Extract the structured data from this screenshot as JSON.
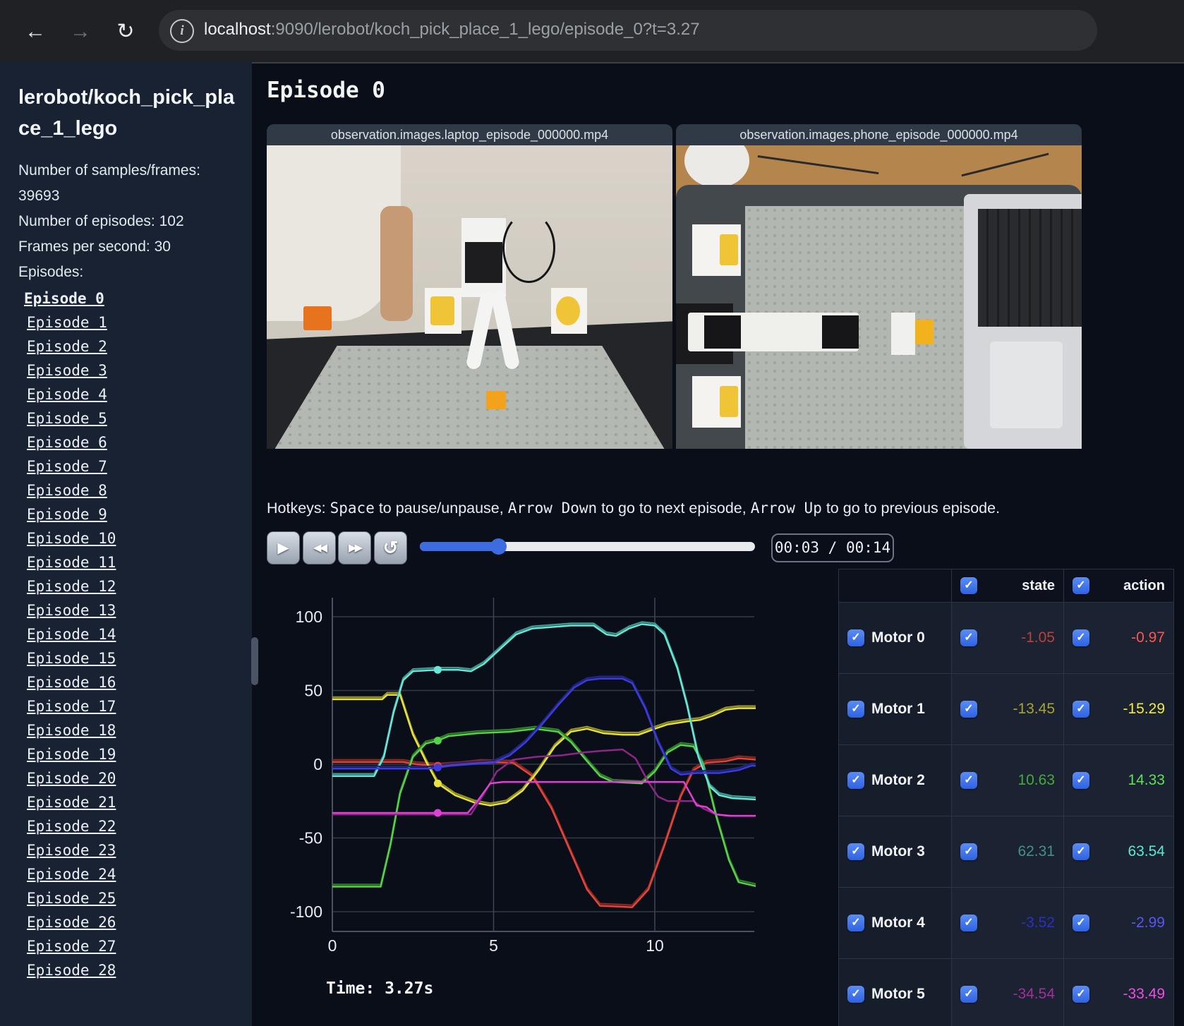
{
  "browser": {
    "url_host": "localhost",
    "url_rest": ":9090/lerobot/koch_pick_place_1_lego/episode_0?t=3.27",
    "icons": {
      "back": "←",
      "forward": "→",
      "reload": "↻",
      "info": "i"
    }
  },
  "sidebar": {
    "title": "lerobot/koch_pick_place_1_lego",
    "info_line_1": "Number of samples/frames: 39693",
    "info_line_2": "Number of episodes: 102",
    "info_line_3": "Frames per second: 30",
    "episodes_label": "Episodes:",
    "active_episode": "Episode 0",
    "episodes": [
      "Episode 0",
      "Episode 1",
      "Episode 2",
      "Episode 3",
      "Episode 4",
      "Episode 5",
      "Episode 6",
      "Episode 7",
      "Episode 8",
      "Episode 9",
      "Episode 10",
      "Episode 11",
      "Episode 12",
      "Episode 13",
      "Episode 14",
      "Episode 15",
      "Episode 16",
      "Episode 17",
      "Episode 18",
      "Episode 19",
      "Episode 20",
      "Episode 21",
      "Episode 22",
      "Episode 23",
      "Episode 24",
      "Episode 25",
      "Episode 26",
      "Episode 27",
      "Episode 28"
    ]
  },
  "main": {
    "heading": "Episode 0",
    "videos": [
      {
        "title": "observation.images.laptop_episode_000000.mp4"
      },
      {
        "title": "observation.images.phone_episode_000000.mp4"
      }
    ],
    "hotkeys": {
      "prefix": "Hotkeys: ",
      "key1": "Space",
      "mid1": " to pause/unpause, ",
      "key2": "Arrow Down",
      "mid2": " to go to next episode, ",
      "key3": "Arrow Up",
      "suffix": " to go to previous episode."
    },
    "player": {
      "icons": {
        "play": "▶",
        "rewind": "◀◀",
        "fast_forward": "▶▶",
        "loop": "↺"
      },
      "progress_pct": 23.4,
      "time_display": "00:03 / 00:14"
    }
  },
  "chart_data": {
    "type": "line",
    "title": "",
    "xlabel": "",
    "ylabel": "",
    "x_ticks": [
      0,
      5,
      10
    ],
    "y_ticks": [
      100,
      50,
      0,
      -50,
      -100
    ],
    "x_range": [
      0,
      13.2
    ],
    "y_range": [
      -113,
      113
    ],
    "marker_time": 3.27,
    "time_label": "Time: 3.27s",
    "grid": true,
    "series": [
      {
        "name": "Motor 0",
        "action_color": "#e2453b",
        "state_color": "#84271f",
        "points": [
          [
            0,
            1.5
          ],
          [
            2.2,
            1.5
          ],
          [
            2.6,
            0
          ],
          [
            3.27,
            -1
          ],
          [
            4.0,
            0
          ],
          [
            4.6,
            1.5
          ],
          [
            5.6,
            1
          ],
          [
            6.2,
            -8
          ],
          [
            6.8,
            -30
          ],
          [
            7.3,
            -55
          ],
          [
            7.9,
            -85
          ],
          [
            8.3,
            -96
          ],
          [
            9.3,
            -97
          ],
          [
            9.8,
            -85
          ],
          [
            10.3,
            -55
          ],
          [
            10.8,
            -22
          ],
          [
            11.2,
            -4
          ],
          [
            11.6,
            1
          ],
          [
            12.2,
            2
          ],
          [
            12.6,
            4
          ],
          [
            13.2,
            3
          ]
        ]
      },
      {
        "name": "Motor 1",
        "action_color": "#e8e23c",
        "state_color": "#92902a",
        "points": [
          [
            0,
            44
          ],
          [
            1.55,
            44
          ],
          [
            1.7,
            47
          ],
          [
            2.1,
            47
          ],
          [
            2.5,
            20
          ],
          [
            2.9,
            2
          ],
          [
            3.27,
            -13
          ],
          [
            3.8,
            -21
          ],
          [
            4.4,
            -26
          ],
          [
            4.9,
            -28
          ],
          [
            5.4,
            -26
          ],
          [
            5.9,
            -18
          ],
          [
            6.4,
            -4
          ],
          [
            6.9,
            12
          ],
          [
            7.4,
            22
          ],
          [
            7.9,
            24
          ],
          [
            8.4,
            21
          ],
          [
            9.0,
            20
          ],
          [
            9.5,
            20
          ],
          [
            10.0,
            24
          ],
          [
            10.4,
            27
          ],
          [
            11.0,
            29
          ],
          [
            11.4,
            30
          ],
          [
            11.8,
            33
          ],
          [
            12.2,
            37
          ],
          [
            12.6,
            38
          ],
          [
            13.2,
            38
          ]
        ]
      },
      {
        "name": "Motor 2",
        "action_color": "#57d348",
        "state_color": "#2f7c2c",
        "points": [
          [
            0,
            -83
          ],
          [
            1.5,
            -83
          ],
          [
            1.8,
            -55
          ],
          [
            2.1,
            -20
          ],
          [
            2.5,
            5
          ],
          [
            2.9,
            14
          ],
          [
            3.27,
            16
          ],
          [
            3.6,
            19
          ],
          [
            4.5,
            21
          ],
          [
            5.5,
            22
          ],
          [
            6.3,
            24
          ],
          [
            7.0,
            22
          ],
          [
            7.4,
            15
          ],
          [
            7.9,
            2
          ],
          [
            8.3,
            -8
          ],
          [
            8.7,
            -12
          ],
          [
            9.6,
            -13
          ],
          [
            10.0,
            -5
          ],
          [
            10.4,
            8
          ],
          [
            10.8,
            13
          ],
          [
            11.2,
            12
          ],
          [
            11.5,
            0
          ],
          [
            11.9,
            -35
          ],
          [
            12.3,
            -65
          ],
          [
            12.6,
            -80
          ],
          [
            13.2,
            -83
          ]
        ]
      },
      {
        "name": "Motor 3",
        "action_color": "#68e6d8",
        "state_color": "#3f978e",
        "points": [
          [
            0,
            -8
          ],
          [
            1.3,
            -8
          ],
          [
            1.6,
            5
          ],
          [
            1.9,
            35
          ],
          [
            2.2,
            57
          ],
          [
            2.5,
            63
          ],
          [
            3.27,
            64
          ],
          [
            3.9,
            64
          ],
          [
            4.3,
            63
          ],
          [
            4.7,
            68
          ],
          [
            5.2,
            78
          ],
          [
            5.7,
            88
          ],
          [
            6.2,
            92
          ],
          [
            6.8,
            93
          ],
          [
            7.4,
            94
          ],
          [
            8.1,
            94
          ],
          [
            8.5,
            88
          ],
          [
            8.8,
            87
          ],
          [
            9.2,
            92
          ],
          [
            9.6,
            95
          ],
          [
            10.0,
            94
          ],
          [
            10.3,
            88
          ],
          [
            10.7,
            65
          ],
          [
            11.0,
            40
          ],
          [
            11.35,
            5
          ],
          [
            11.7,
            -15
          ],
          [
            12.0,
            -21
          ],
          [
            12.4,
            -23
          ],
          [
            13.2,
            -24
          ]
        ]
      },
      {
        "name": "Motor 4",
        "action_color": "#3a3ce0",
        "state_color": "#22247e",
        "points": [
          [
            0,
            -3
          ],
          [
            3.0,
            -3
          ],
          [
            3.7,
            -1
          ],
          [
            4.3,
            0
          ],
          [
            5.0,
            1
          ],
          [
            5.5,
            6
          ],
          [
            6.0,
            15
          ],
          [
            6.5,
            27
          ],
          [
            7.0,
            40
          ],
          [
            7.5,
            52
          ],
          [
            7.9,
            57
          ],
          [
            8.3,
            58
          ],
          [
            9.0,
            58
          ],
          [
            9.3,
            55
          ],
          [
            9.7,
            38
          ],
          [
            10.1,
            15
          ],
          [
            10.5,
            -3
          ],
          [
            10.8,
            -7
          ],
          [
            11.3,
            -6
          ],
          [
            12.0,
            -6
          ],
          [
            12.6,
            -4
          ],
          [
            13.0,
            -1
          ],
          [
            13.2,
            -1
          ]
        ]
      },
      {
        "name": "Motor 5",
        "action_color": "#e23fd6",
        "state_color": "#8e2588",
        "points": [
          [
            0,
            -33
          ],
          [
            3.27,
            -33
          ],
          [
            4.2,
            -33
          ],
          [
            4.5,
            -25
          ],
          [
            4.9,
            -13
          ],
          [
            5.3,
            -12
          ],
          [
            7.0,
            -12
          ],
          [
            9.0,
            -12
          ],
          [
            10.9,
            -12
          ],
          [
            11.1,
            -20
          ],
          [
            11.3,
            -28
          ],
          [
            11.6,
            -29
          ],
          [
            11.9,
            -34
          ],
          [
            12.3,
            -35
          ],
          [
            13.2,
            -35
          ]
        ],
        "state_points": [
          [
            0,
            -34
          ],
          [
            3.27,
            -34
          ],
          [
            4.3,
            -34
          ],
          [
            4.7,
            -20
          ],
          [
            5.1,
            -5
          ],
          [
            5.6,
            3
          ],
          [
            6.3,
            5
          ],
          [
            7.1,
            6
          ],
          [
            7.8,
            8
          ],
          [
            8.3,
            9
          ],
          [
            9.0,
            10
          ],
          [
            9.4,
            4
          ],
          [
            9.8,
            -12
          ],
          [
            10.1,
            -22
          ],
          [
            10.4,
            -25
          ],
          [
            11.2,
            -25
          ],
          [
            11.5,
            -30
          ],
          [
            11.9,
            -34
          ],
          [
            12.4,
            -35
          ],
          [
            13.2,
            -35
          ]
        ]
      }
    ]
  },
  "table": {
    "headers": [
      "state",
      "action"
    ],
    "checkbox_glyph": "✓",
    "rows": [
      {
        "label": "Motor 0",
        "state": "-1.05",
        "action": "-0.97",
        "state_color": "#b8413a",
        "action_color": "#ff554e"
      },
      {
        "label": "Motor 1",
        "state": "-13.45",
        "action": "-15.29",
        "state_color": "#a8a430",
        "action_color": "#f2ea3d"
      },
      {
        "label": "Motor 2",
        "state": "10.63",
        "action": "14.33",
        "state_color": "#46a93e",
        "action_color": "#5fe054"
      },
      {
        "label": "Motor 3",
        "state": "62.31",
        "action": "63.54",
        "state_color": "#41918a",
        "action_color": "#5ce8d5"
      },
      {
        "label": "Motor 4",
        "state": "-3.52",
        "action": "-2.99",
        "state_color": "#2b2fc4",
        "action_color": "#5a56f2"
      },
      {
        "label": "Motor 5",
        "state": "-34.54",
        "action": "-33.49",
        "state_color": "#a1309a",
        "action_color": "#ef4ce2"
      }
    ]
  },
  "colors": {
    "page_bg": "#0a0e19",
    "sidebar_bg": "#182232",
    "accent_blue": "#3d6ce0",
    "checkbox_blue": "#2f62e0"
  }
}
